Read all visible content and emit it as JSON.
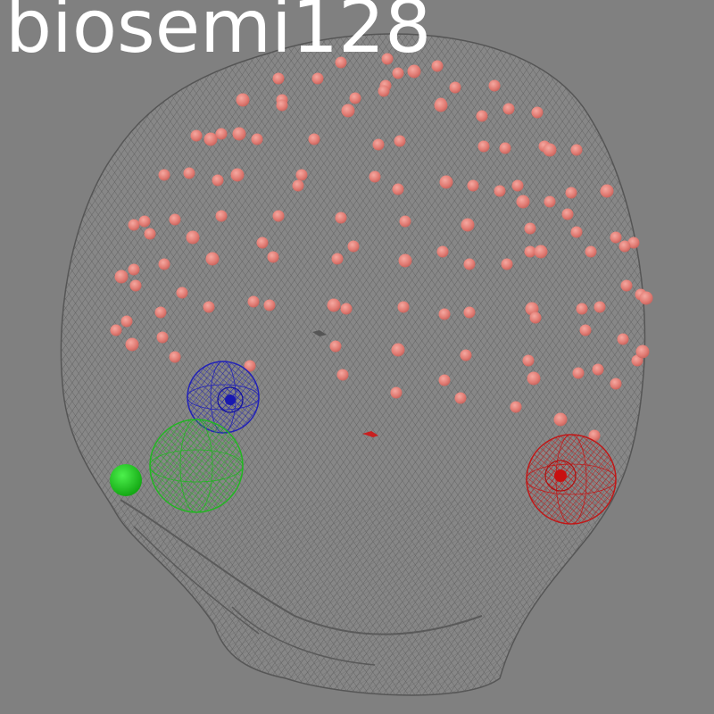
{
  "title": "biosemi128",
  "colors": {
    "background": "#808080",
    "mesh": "#5c5c5c",
    "title": "#ffffff",
    "electrode": "#e57f78",
    "nasion": "#1212c8",
    "left_ear": "#18c818",
    "right_ear": "#d21010",
    "origin_marker": "#c82020"
  },
  "icons": [
    "head-mesh",
    "electrode-sphere",
    "fiducial-nasion",
    "fiducial-lpa",
    "fiducial-rpa",
    "origin-marker"
  ]
}
